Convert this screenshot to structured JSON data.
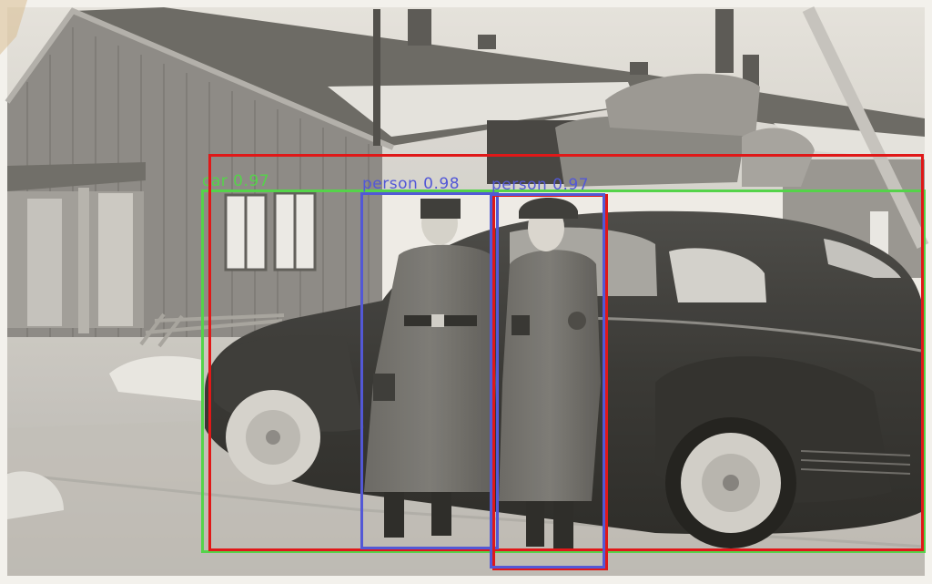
{
  "photo": {
    "description_tone": "sepia-grey vintage photograph",
    "colors": {
      "paper": "#f3f1ec",
      "sky": "#e6e4df",
      "building": "#8e8c88",
      "car": "#3c3c3a",
      "ground": "#c9c7c2"
    }
  },
  "detections": [
    {
      "label": "car 0.97",
      "class": "car",
      "score": 0.97,
      "color": "#55d34a"
    },
    {
      "label": "person 0.98",
      "class": "person",
      "score": 0.98,
      "color": "#5358d6"
    },
    {
      "label": "person 0.97",
      "class": "person",
      "score": 0.97,
      "color": "#5358d6"
    },
    {
      "label": "",
      "class": "unlabeled",
      "color": "#e01818"
    },
    {
      "label": "",
      "class": "unlabeled",
      "color": "#e01818"
    }
  ]
}
